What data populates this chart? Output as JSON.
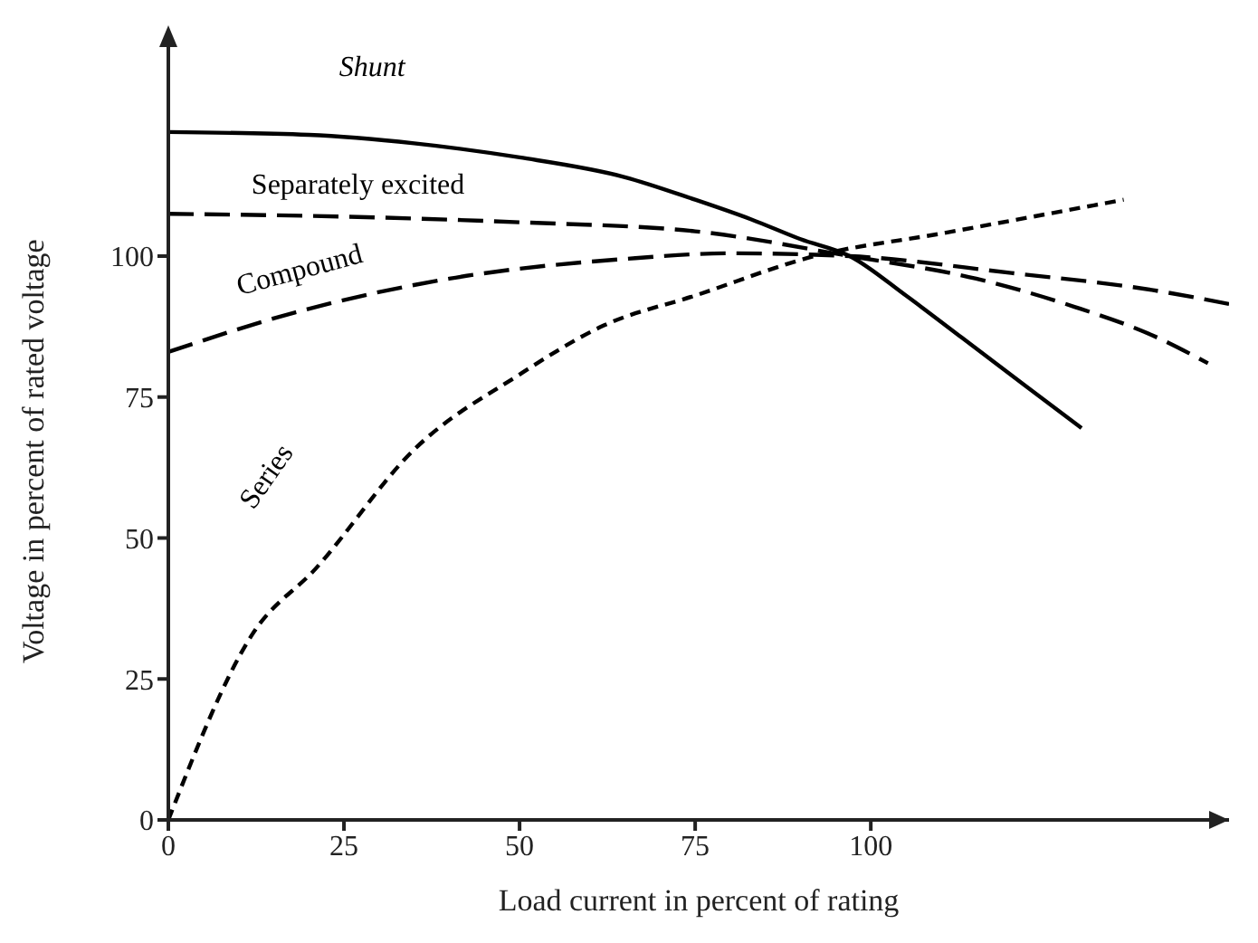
{
  "chart_data": {
    "type": "line",
    "xlabel": "Load current in percent of rating",
    "ylabel": "Voltage in percent of rated voltage",
    "xlim": [
      0,
      151
    ],
    "ylim": [
      0,
      139
    ],
    "xticks": [
      0,
      25,
      50,
      75,
      100
    ],
    "yticks": [
      0,
      25,
      50,
      75,
      100
    ],
    "grid": false,
    "legend": false,
    "marker": "none",
    "series": [
      {
        "name": "Shunt",
        "color": "#000000",
        "line_style": "solid",
        "x": [
          0,
          20,
          35,
          50,
          65,
          75,
          83,
          90,
          97,
          105,
          113,
          122,
          130
        ],
        "values": [
          122,
          121.5,
          120,
          117.5,
          114,
          110,
          106.5,
          103,
          100,
          93,
          85.5,
          77,
          69.5
        ]
      },
      {
        "name": "Separately excited",
        "color": "#000000",
        "line_style": "dashed",
        "x": [
          0,
          25,
          50,
          75,
          97,
          115,
          129,
          140,
          148
        ],
        "values": [
          107.5,
          107,
          106,
          104.4,
          100,
          96,
          91,
          86,
          81
        ]
      },
      {
        "name": "Compound",
        "color": "#000000",
        "line_style": "dashed",
        "x": [
          0,
          18,
          40,
          65,
          80,
          97,
          120,
          140,
          151
        ],
        "values": [
          83,
          90,
          96,
          99.5,
          100.5,
          100,
          97,
          94,
          91.5
        ]
      },
      {
        "name": "Series",
        "color": "#000000",
        "line_style": "dotted",
        "x": [
          0,
          12,
          21,
          35,
          50,
          62,
          75,
          92,
          110,
          136
        ],
        "values": [
          0,
          33,
          44.6,
          65.7,
          79,
          87.7,
          93,
          100,
          104,
          110
        ]
      }
    ]
  }
}
